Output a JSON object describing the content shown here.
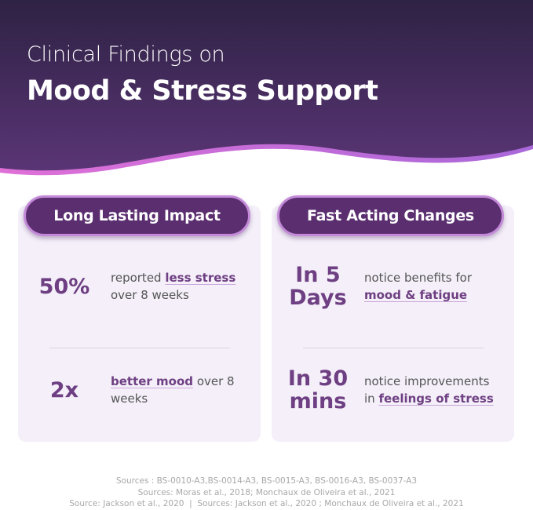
{
  "header": {
    "line1": "Clinical Findings on",
    "line2": "Mood & Stress Support"
  },
  "cards": [
    {
      "title": "Long Lasting Impact",
      "stats": [
        {
          "figure": "50%",
          "parts": [
            {
              "text": "reported"
            },
            {
              "text": "less stress",
              "highlight": true
            },
            {
              "text": "over 8 weeks"
            }
          ]
        },
        {
          "figure": "2x",
          "parts": [
            {
              "text": "better mood",
              "highlight": true
            },
            {
              "text": "over 8 weeks"
            }
          ]
        }
      ]
    },
    {
      "title": "Fast Acting Changes",
      "stats": [
        {
          "figure": "In 5 Days",
          "parts": [
            {
              "text": "notice benefits for"
            },
            {
              "text": "mood & fatigue",
              "highlight": true
            }
          ]
        },
        {
          "figure": "In 30 mins",
          "parts": [
            {
              "text": "notice improvements in"
            },
            {
              "text": "feelings of stress",
              "highlight": true
            }
          ]
        }
      ]
    }
  ],
  "sources": [
    "Sources : BS-0010-A3,BS-0014-A3, BS-0015-A3, BS-0016-A3, BS-0037-A3",
    "Sources: Moras et al., 2018; Monchaux de Oliveira et al., 2021",
    "Source: Jackson et al., 2020  |  Sources: Jackson et al., 2020 ; Monchaux de Oliveira et al., 2021"
  ]
}
